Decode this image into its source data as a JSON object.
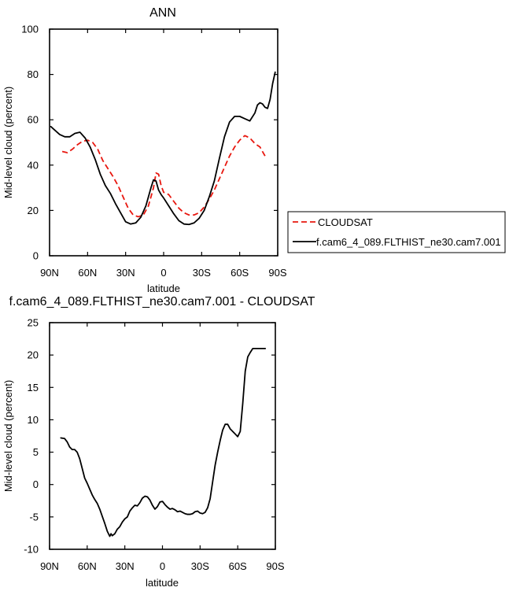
{
  "chart_data": [
    {
      "type": "line",
      "title": "ANN",
      "xlabel": "latitude",
      "ylabel": "Mid-level cloud (percent)",
      "xlim": [
        90,
        -90
      ],
      "ylim": [
        0,
        100
      ],
      "x_ticks": [
        {
          "value": 90,
          "label": "90N"
        },
        {
          "value": 60,
          "label": "60N"
        },
        {
          "value": 30,
          "label": "30N"
        },
        {
          "value": 0,
          "label": "0"
        },
        {
          "value": -30,
          "label": "30S"
        },
        {
          "value": -60,
          "label": "60S"
        },
        {
          "value": -90,
          "label": "90S"
        }
      ],
      "y_ticks": [
        0,
        20,
        40,
        60,
        80,
        100
      ],
      "legend_position": "right",
      "series": [
        {
          "name": "CLOUDSAT",
          "color": "#e8170f",
          "dash": "dashed",
          "x": [
            80,
            76,
            72,
            68,
            64,
            60,
            56,
            52,
            48,
            44,
            40,
            36,
            32,
            28,
            24,
            20,
            16,
            12,
            8,
            6,
            4,
            2,
            0,
            -4,
            -8,
            -12,
            -16,
            -20,
            -24,
            -28,
            -32,
            -36,
            -40,
            -44,
            -48,
            -52,
            -56,
            -60,
            -64,
            -68,
            -72,
            -76,
            -80
          ],
          "y": [
            46,
            45.5,
            47,
            49,
            50.5,
            51,
            50,
            47,
            42,
            38.5,
            35,
            31,
            26,
            21,
            18,
            17.2,
            18,
            22,
            30,
            36.5,
            36,
            31,
            28,
            27,
            24,
            21,
            19,
            18,
            18,
            19,
            21.5,
            25,
            29,
            34,
            39,
            44,
            48,
            51,
            53,
            52,
            49.5,
            48,
            44
          ]
        },
        {
          "name": "f.cam6_4_089.FLTHIST_ne30.cam7.001",
          "color": "#000000",
          "dash": "solid",
          "x": [
            89,
            86,
            82,
            78,
            74,
            70,
            66,
            62,
            58,
            54,
            50,
            46,
            42,
            38,
            34,
            30,
            26,
            22,
            18,
            14,
            10,
            8,
            6,
            4,
            2,
            0,
            -4,
            -8,
            -12,
            -16,
            -20,
            -24,
            -28,
            -32,
            -36,
            -40,
            -44,
            -48,
            -52,
            -56,
            -60,
            -64,
            -68,
            -72,
            -74,
            -76,
            -78,
            -80,
            -82,
            -84,
            -86,
            -88
          ],
          "y": [
            57,
            55.5,
            53.5,
            52.5,
            52.5,
            54,
            54.5,
            52,
            48,
            42.5,
            36,
            31,
            27.5,
            23,
            19,
            15,
            14,
            14.5,
            17,
            22,
            30,
            33.5,
            33,
            29,
            27,
            25.5,
            22,
            18.5,
            15.5,
            14,
            13.8,
            14.5,
            16.5,
            20,
            26,
            33,
            43,
            52.5,
            59,
            61.5,
            61.5,
            60.5,
            59.5,
            63,
            66.5,
            67.5,
            67,
            65.5,
            65,
            69,
            76,
            81
          ]
        }
      ]
    },
    {
      "type": "line",
      "title": "f.cam6_4_089.FLTHIST_ne30.cam7.001 - CLOUDSAT",
      "xlabel": "latitude",
      "ylabel": "Mid-level cloud (percent)",
      "xlim": [
        90,
        -90
      ],
      "ylim": [
        -10,
        25
      ],
      "x_ticks": [
        {
          "value": 90,
          "label": "90N"
        },
        {
          "value": 60,
          "label": "60N"
        },
        {
          "value": 30,
          "label": "30N"
        },
        {
          "value": 0,
          "label": "0"
        },
        {
          "value": -30,
          "label": "30S"
        },
        {
          "value": -60,
          "label": "60S"
        },
        {
          "value": -90,
          "label": "90S"
        }
      ],
      "y_ticks": [
        -10,
        -5,
        0,
        5,
        10,
        15,
        20,
        25
      ],
      "series": [
        {
          "color": "#000000",
          "dash": "solid",
          "x": [
            81,
            78,
            76,
            74,
            72,
            70,
            68,
            66,
            64,
            62,
            60,
            58,
            56,
            54,
            52,
            50,
            48,
            46,
            44,
            42,
            41,
            40,
            38,
            36,
            34,
            32,
            30,
            28,
            26,
            24,
            22,
            20,
            18,
            16,
            14,
            12,
            10,
            8,
            6,
            4,
            2,
            0,
            -2,
            -4,
            -6,
            -8,
            -10,
            -12,
            -14,
            -16,
            -18,
            -20,
            -22,
            -24,
            -26,
            -28,
            -30,
            -32,
            -34,
            -36,
            -38,
            -40,
            -42,
            -44,
            -46,
            -48,
            -50,
            -52,
            -54,
            -56,
            -58,
            -60,
            -62,
            -64,
            -66,
            -68,
            -70,
            -72,
            -74,
            -76,
            -78,
            -80,
            -82
          ],
          "y": [
            7.2,
            7.1,
            6.6,
            5.8,
            5.4,
            5.4,
            5.0,
            4.0,
            2.5,
            1.0,
            0.2,
            -0.7,
            -1.6,
            -2.3,
            -2.9,
            -3.8,
            -4.9,
            -6.0,
            -7.2,
            -8.0,
            -7.6,
            -7.9,
            -7.6,
            -6.9,
            -6.5,
            -5.8,
            -5.3,
            -5.0,
            -4.1,
            -3.6,
            -3.2,
            -3.3,
            -2.8,
            -2.1,
            -1.8,
            -1.9,
            -2.4,
            -3.2,
            -3.8,
            -3.4,
            -2.7,
            -2.6,
            -3.1,
            -3.5,
            -3.8,
            -3.7,
            -3.9,
            -4.2,
            -4.1,
            -4.3,
            -4.5,
            -4.6,
            -4.6,
            -4.5,
            -4.2,
            -4.1,
            -4.4,
            -4.5,
            -4.3,
            -3.6,
            -2.2,
            0.4,
            3.0,
            5.0,
            6.8,
            8.4,
            9.3,
            9.3,
            8.6,
            8.2,
            7.8,
            7.4,
            8.2,
            12.5,
            17.5,
            19.7,
            20.4,
            21.0,
            21.0,
            21.0,
            21.0,
            21.0,
            21.0
          ]
        }
      ]
    }
  ]
}
